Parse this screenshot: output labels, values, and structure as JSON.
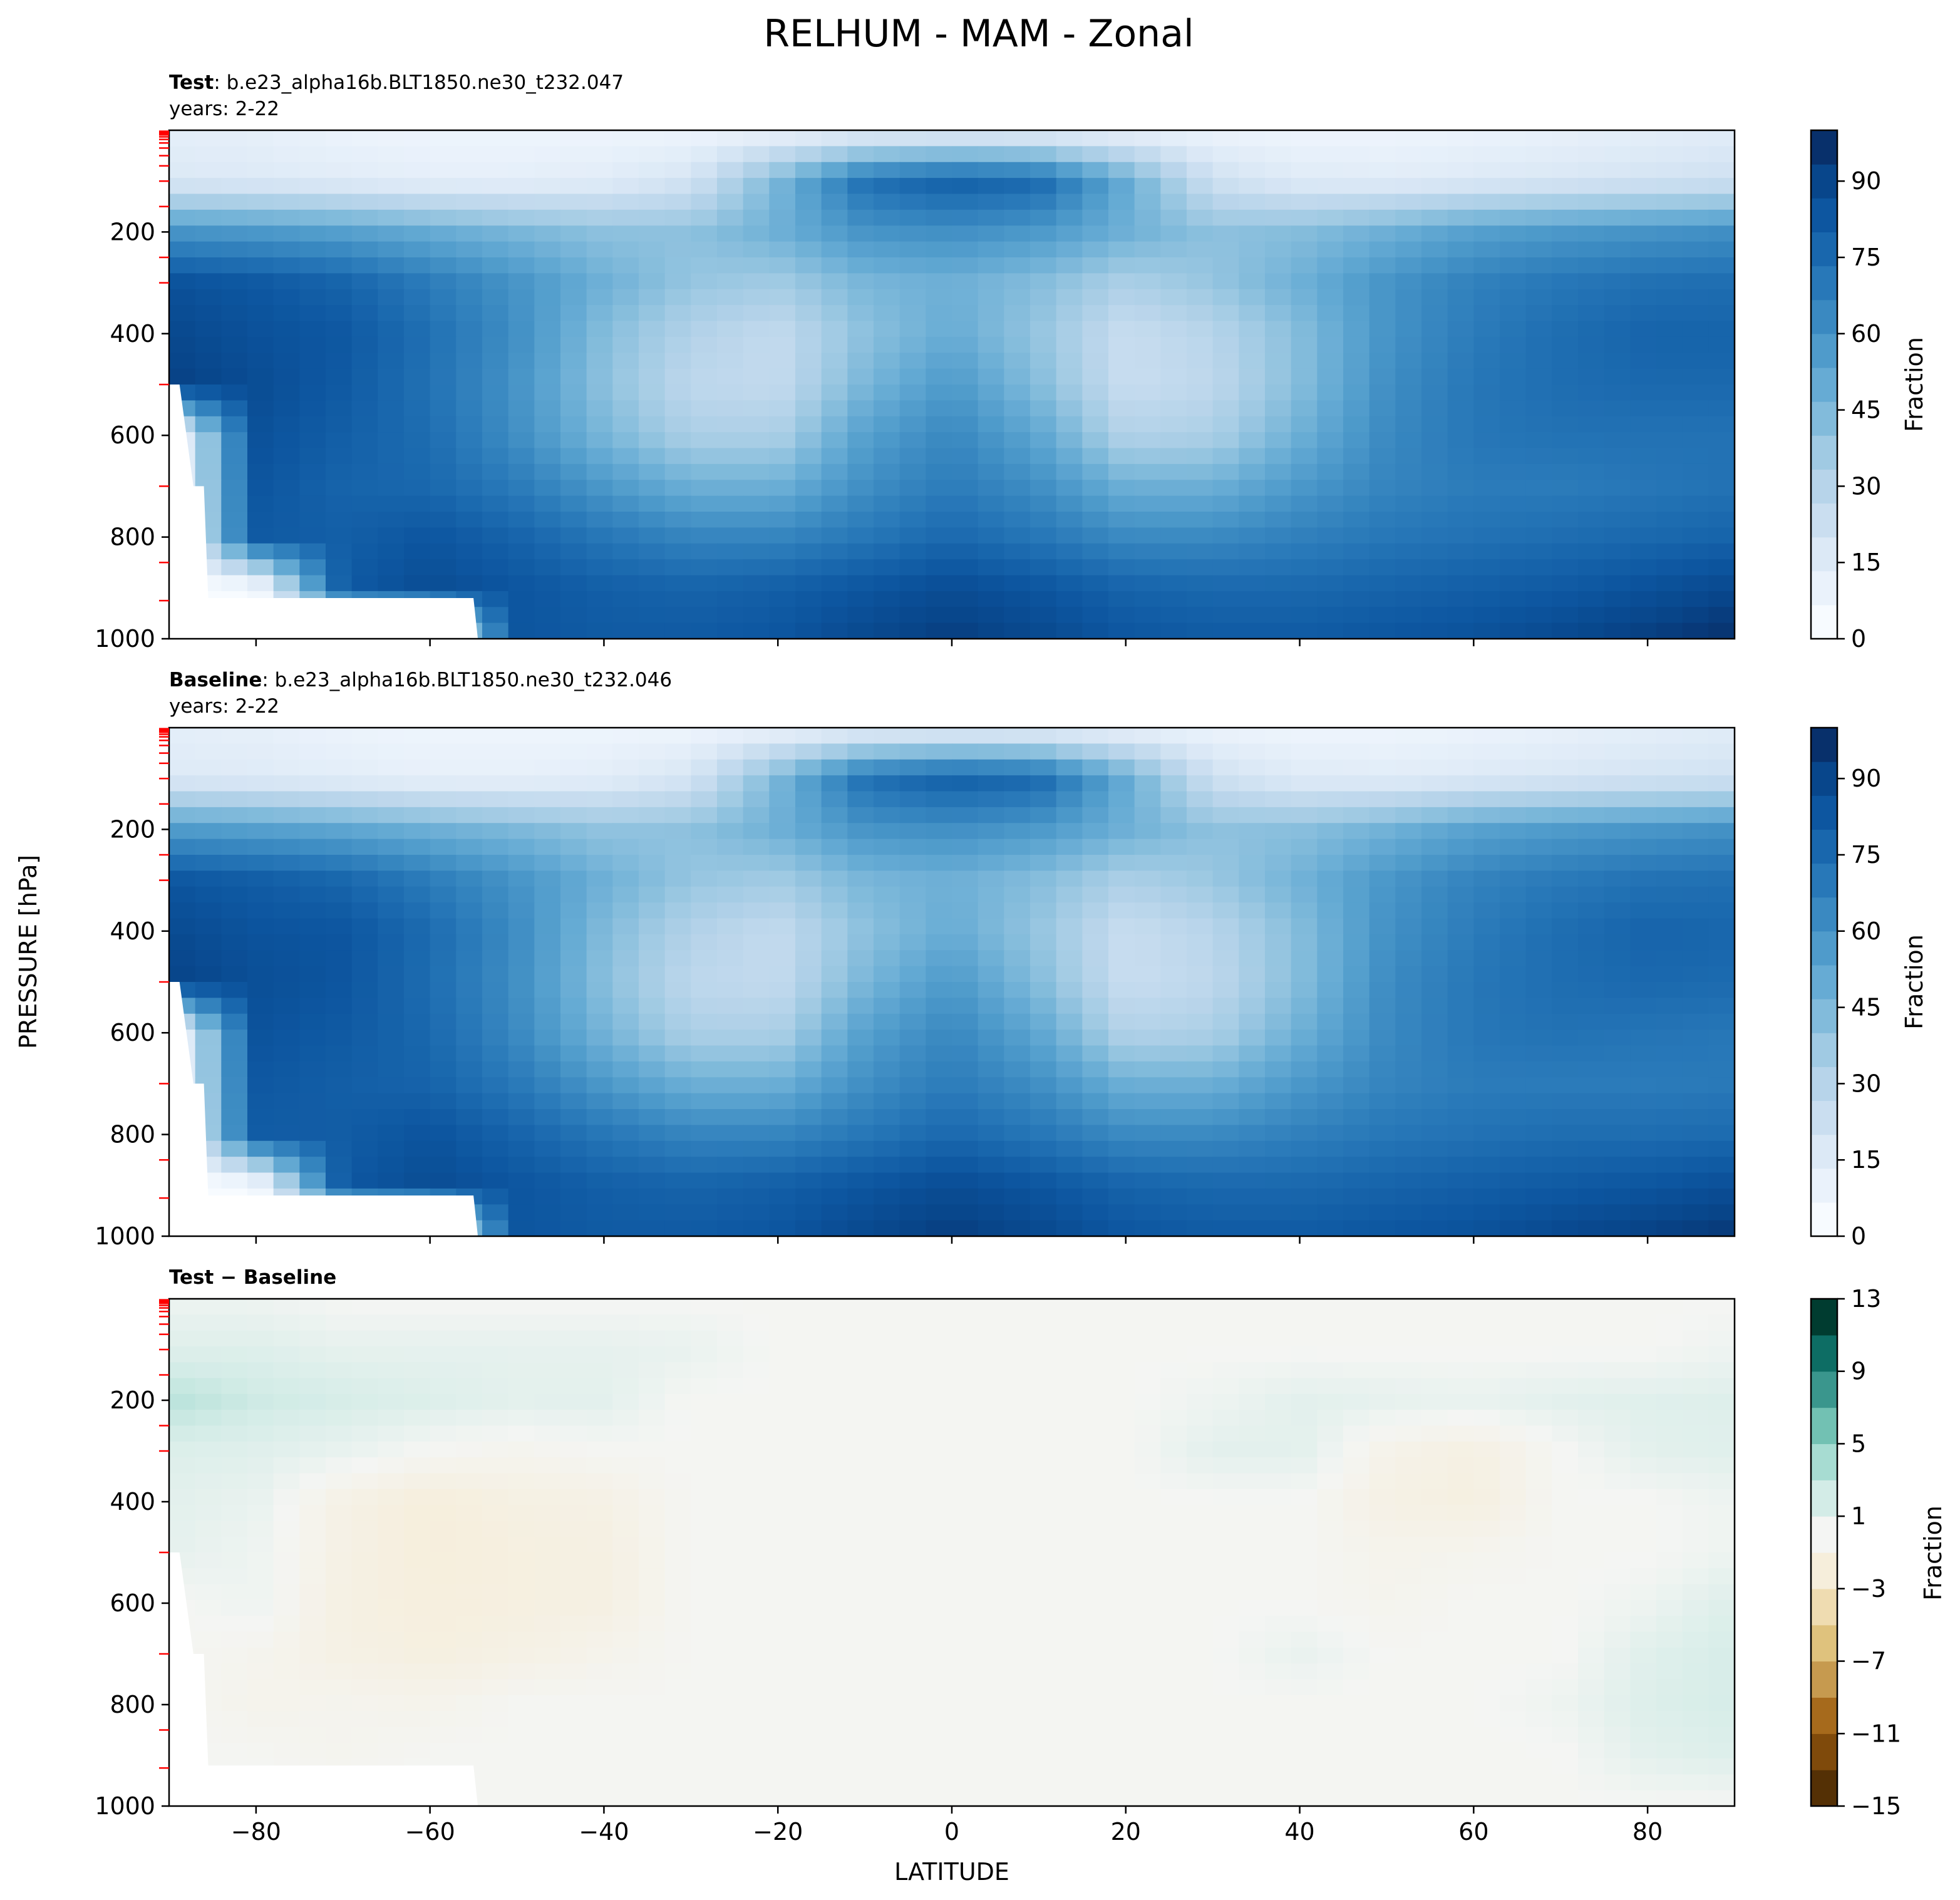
{
  "figure": {
    "title": "RELHUM - MAM - Zonal",
    "ylabel": "PRESSURE [hPa]",
    "xlabel": "LATITUDE"
  },
  "panels": [
    {
      "id": "test",
      "title_bold": "Test",
      "title_rest": ": b.e23_alpha16b.BLT1850.ne30_t232.047",
      "subtitle": "years: 2-22",
      "colorbar_label": "Fraction",
      "colorbar_ticks": [
        "0",
        "15",
        "30",
        "45",
        "60",
        "75",
        "90"
      ],
      "colorbar_tick_values": [
        0,
        15,
        30,
        45,
        60,
        75,
        90
      ],
      "colorbar_range": [
        0,
        100
      ],
      "colormap": [
        "#f7fbff",
        "#eaf2fb",
        "#dce9f6",
        "#cadef0",
        "#b7d4ea",
        "#a0cae3",
        "#82bbdb",
        "#66abd4",
        "#4f9bcb",
        "#3a89c1",
        "#2878b8",
        "#1967ad",
        "#0d56a0",
        "#08468b",
        "#08306b"
      ]
    },
    {
      "id": "baseline",
      "title_bold": "Baseline",
      "title_rest": ": b.e23_alpha16b.BLT1850.ne30_t232.046",
      "subtitle": "years: 2-22",
      "colorbar_label": "Fraction",
      "colorbar_ticks": [
        "0",
        "15",
        "30",
        "45",
        "60",
        "75",
        "90"
      ],
      "colorbar_tick_values": [
        0,
        15,
        30,
        45,
        60,
        75,
        90
      ],
      "colorbar_range": [
        0,
        100
      ],
      "colormap": [
        "#f7fbff",
        "#eaf2fb",
        "#dce9f6",
        "#cadef0",
        "#b7d4ea",
        "#a0cae3",
        "#82bbdb",
        "#66abd4",
        "#4f9bcb",
        "#3a89c1",
        "#2878b8",
        "#1967ad",
        "#0d56a0",
        "#08468b",
        "#08306b"
      ]
    },
    {
      "id": "diff",
      "title_bold": "Test − Baseline",
      "title_rest": "",
      "subtitle": "",
      "colorbar_label": "Fraction",
      "colorbar_ticks": [
        "13",
        "9",
        "5",
        "1",
        "−3",
        "−7",
        "−11",
        "−15"
      ],
      "colorbar_tick_values": [
        13,
        9,
        5,
        1,
        -3,
        -7,
        -11,
        -15
      ],
      "colorbar_range": [
        -15,
        13
      ],
      "colormap": [
        "#543005",
        "#7f4a0b",
        "#a66a1c",
        "#c69a4f",
        "#dfc27d",
        "#efdcb1",
        "#f6eedb",
        "#f4f5f3",
        "#d3ece7",
        "#a7dcd2",
        "#72c1b3",
        "#3a968d",
        "#0d6d64",
        "#003c30"
      ]
    }
  ],
  "chart_data": [
    {
      "type": "heatmap",
      "title": "Test: b.e23_alpha16b.BLT1850.ne30_t232.047",
      "xlabel": "LATITUDE",
      "ylabel": "PRESSURE [hPa]",
      "xlim": [
        -90,
        90
      ],
      "ylim": [
        1000,
        0
      ],
      "x_ticks": [
        -80,
        -60,
        -40,
        -20,
        0,
        20,
        40,
        60,
        80
      ],
      "y_ticks": [
        200,
        400,
        600,
        800,
        1000
      ],
      "zlim": [
        0,
        100
      ],
      "colorbar_label": "Fraction",
      "x": [
        -90,
        -80,
        -70,
        -60,
        -50,
        -40,
        -30,
        -20,
        -10,
        0,
        10,
        20,
        30,
        40,
        50,
        60,
        70,
        80,
        90
      ],
      "y": [
        0,
        100,
        200,
        300,
        400,
        500,
        600,
        700,
        800,
        900,
        1000
      ],
      "z": [
        [
          10,
          9,
          6,
          5,
          5,
          5,
          5,
          6,
          8,
          8,
          8,
          7,
          6,
          5,
          5,
          6,
          8,
          10,
          12
        ],
        [
          15,
          14,
          12,
          10,
          10,
          12,
          18,
          45,
          75,
          82,
          78,
          50,
          20,
          13,
          12,
          14,
          16,
          18,
          20
        ],
        [
          60,
          58,
          55,
          50,
          45,
          40,
          40,
          48,
          60,
          62,
          58,
          48,
          40,
          42,
          48,
          55,
          58,
          60,
          62
        ],
        [
          88,
          85,
          80,
          70,
          60,
          48,
          38,
          35,
          45,
          48,
          42,
          32,
          38,
          48,
          60,
          68,
          72,
          75,
          76
        ],
        [
          92,
          88,
          85,
          75,
          62,
          42,
          30,
          24,
          40,
          50,
          38,
          22,
          28,
          42,
          60,
          70,
          76,
          80,
          80
        ],
        [
          95,
          90,
          84,
          74,
          60,
          40,
          26,
          24,
          45,
          58,
          42,
          22,
          26,
          42,
          62,
          72,
          76,
          78,
          78
        ],
        [
          0,
          88,
          82,
          76,
          62,
          45,
          32,
          32,
          55,
          65,
          52,
          30,
          32,
          48,
          64,
          72,
          74,
          74,
          74
        ],
        [
          0,
          86,
          80,
          78,
          70,
          58,
          48,
          48,
          62,
          70,
          62,
          48,
          48,
          58,
          66,
          70,
          70,
          72,
          74
        ],
        [
          0,
          84,
          82,
          86,
          80,
          72,
          66,
          66,
          72,
          78,
          72,
          64,
          64,
          68,
          72,
          74,
          76,
          78,
          80
        ],
        [
          0,
          0,
          84,
          90,
          86,
          82,
          80,
          82,
          86,
          90,
          86,
          80,
          78,
          78,
          80,
          82,
          84,
          88,
          92
        ],
        [
          0,
          0,
          0,
          0,
          86,
          84,
          84,
          86,
          92,
          96,
          92,
          86,
          84,
          84,
          86,
          88,
          92,
          96,
          100
        ]
      ]
    },
    {
      "type": "heatmap",
      "title": "Baseline: b.e23_alpha16b.BLT1850.ne30_t232.046",
      "xlabel": "LATITUDE",
      "ylabel": "PRESSURE [hPa]",
      "xlim": [
        -90,
        90
      ],
      "ylim": [
        1000,
        0
      ],
      "x_ticks": [
        -80,
        -60,
        -40,
        -20,
        0,
        20,
        40,
        60,
        80
      ],
      "y_ticks": [
        200,
        400,
        600,
        800,
        1000
      ],
      "zlim": [
        0,
        100
      ],
      "colorbar_label": "Fraction",
      "x": [
        -90,
        -80,
        -70,
        -60,
        -50,
        -40,
        -30,
        -20,
        -10,
        0,
        10,
        20,
        30,
        40,
        50,
        60,
        70,
        80,
        90
      ],
      "y": [
        0,
        100,
        200,
        300,
        400,
        500,
        600,
        700,
        800,
        900,
        1000
      ],
      "z": [
        [
          10,
          9,
          6,
          5,
          5,
          5,
          5,
          6,
          8,
          8,
          8,
          7,
          6,
          5,
          5,
          6,
          8,
          10,
          12
        ],
        [
          14,
          13,
          11,
          9,
          9,
          11,
          17,
          45,
          75,
          82,
          78,
          50,
          20,
          13,
          12,
          14,
          16,
          18,
          19
        ],
        [
          57,
          55,
          52,
          48,
          44,
          39,
          40,
          48,
          60,
          62,
          58,
          48,
          40,
          41,
          47,
          54,
          57,
          59,
          61
        ],
        [
          86,
          83,
          79,
          70,
          60,
          48,
          38,
          35,
          45,
          48,
          42,
          32,
          37,
          47,
          59,
          67,
          71,
          74,
          75
        ],
        [
          91,
          87,
          86,
          77,
          63,
          43,
          30,
          24,
          40,
          50,
          38,
          22,
          28,
          42,
          61,
          70,
          76,
          80,
          79
        ],
        [
          94,
          89,
          86,
          76,
          62,
          41,
          26,
          24,
          45,
          58,
          42,
          22,
          26,
          42,
          63,
          72,
          76,
          78,
          77
        ],
        [
          0,
          87,
          84,
          78,
          64,
          46,
          32,
          32,
          55,
          65,
          52,
          30,
          32,
          48,
          64,
          72,
          74,
          73,
          72
        ],
        [
          0,
          85,
          82,
          80,
          71,
          58,
          48,
          48,
          62,
          70,
          62,
          48,
          48,
          58,
          66,
          70,
          70,
          70,
          71
        ],
        [
          0,
          83,
          83,
          87,
          80,
          72,
          66,
          66,
          72,
          78,
          72,
          64,
          64,
          68,
          72,
          74,
          76,
          76,
          77
        ],
        [
          0,
          0,
          85,
          90,
          86,
          82,
          80,
          82,
          86,
          90,
          86,
          80,
          78,
          78,
          80,
          82,
          84,
          86,
          89
        ],
        [
          0,
          0,
          0,
          0,
          86,
          84,
          84,
          86,
          92,
          96,
          92,
          86,
          84,
          84,
          86,
          88,
          92,
          95,
          98
        ]
      ]
    },
    {
      "type": "heatmap",
      "title": "Test − Baseline",
      "xlabel": "LATITUDE",
      "ylabel": "PRESSURE [hPa]",
      "xlim": [
        -90,
        90
      ],
      "ylim": [
        1000,
        0
      ],
      "x_ticks": [
        -80,
        -60,
        -40,
        -20,
        0,
        20,
        40,
        60,
        80
      ],
      "y_ticks": [
        200,
        400,
        600,
        800,
        1000
      ],
      "zlim": [
        -15,
        13
      ],
      "colorbar_label": "Fraction",
      "x": [
        -90,
        -80,
        -70,
        -60,
        -50,
        -40,
        -30,
        -20,
        -10,
        0,
        10,
        20,
        30,
        40,
        50,
        60,
        70,
        80,
        90
      ],
      "y": [
        0,
        100,
        200,
        300,
        400,
        500,
        600,
        700,
        800,
        900,
        1000
      ],
      "z": [
        [
          0.5,
          0.5,
          0,
          0,
          0,
          0,
          0,
          0,
          0,
          0,
          0,
          0,
          0,
          0,
          0,
          0,
          0,
          0,
          0
        ],
        [
          1.5,
          1.5,
          1,
          1,
          1,
          1,
          0.8,
          0,
          0,
          0,
          0,
          0,
          0,
          0,
          0,
          0,
          0,
          0,
          0.5
        ],
        [
          3.5,
          2.5,
          2,
          1.6,
          1.2,
          1.2,
          0,
          0,
          0,
          0,
          0,
          0,
          0.5,
          1.2,
          1,
          0.8,
          1.2,
          1.4,
          1.5
        ],
        [
          1.6,
          1.4,
          0.8,
          0,
          -0.4,
          0,
          0,
          0,
          0,
          0,
          0,
          0,
          1.2,
          1.2,
          -0.8,
          -1.4,
          0,
          1.2,
          1.4
        ],
        [
          1.2,
          0.8,
          -1.2,
          -2,
          -1.4,
          -1.2,
          0,
          0,
          0,
          0,
          0,
          0,
          0,
          0,
          -1.2,
          -1.6,
          0,
          0,
          0.5
        ],
        [
          1,
          0.5,
          -1.2,
          -2,
          -1.6,
          -1.4,
          0,
          0,
          0,
          0,
          0,
          0,
          0,
          0,
          -0.6,
          -0.4,
          0,
          0,
          0.5
        ],
        [
          0,
          0.5,
          -1.4,
          -1.8,
          -1.6,
          -1.4,
          0,
          0,
          0,
          0,
          0,
          0,
          0,
          0,
          -0.4,
          0,
          0,
          0.5,
          1.6
        ],
        [
          0,
          -0.4,
          -1.2,
          -1.6,
          -1.2,
          -0.6,
          0,
          0,
          0,
          0,
          0,
          0,
          0,
          0.8,
          0,
          0,
          0,
          1.4,
          2
        ],
        [
          0,
          -0.6,
          -0.4,
          -0.6,
          0,
          0,
          0,
          0,
          0,
          0,
          0,
          0,
          0,
          0,
          0,
          0,
          0.5,
          1.6,
          2
        ],
        [
          0,
          0,
          -0.4,
          0,
          0,
          0,
          0,
          0,
          0,
          0,
          0,
          0,
          0,
          0,
          0,
          0,
          0,
          1.2,
          1.6
        ],
        [
          0,
          0,
          0,
          0,
          0,
          0,
          0,
          0,
          0,
          0,
          0,
          0,
          0,
          0,
          0,
          0,
          0,
          0,
          0
        ]
      ]
    }
  ]
}
